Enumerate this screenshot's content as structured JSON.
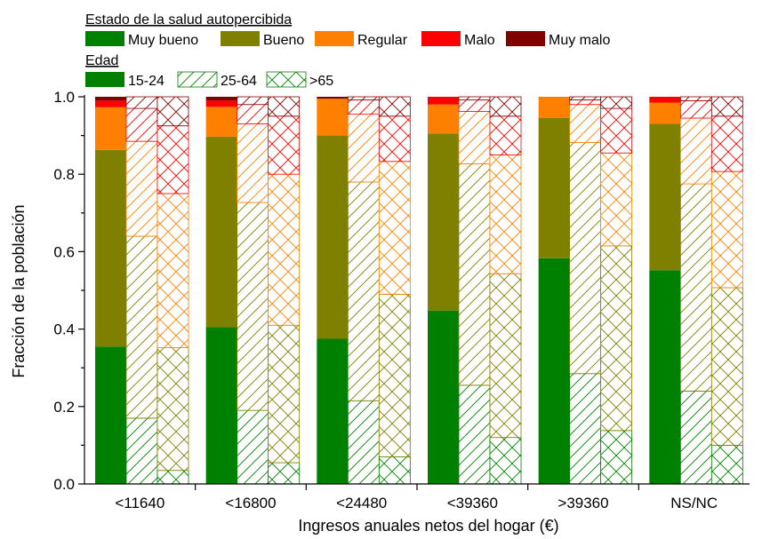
{
  "chart_data": {
    "type": "bar",
    "subtype": "stacked, grouped by income bracket; three bars per group (age groups) distinguished by hatch pattern",
    "categories": [
      "<11640",
      "<16800",
      "<24480",
      "<39360",
      ">39360",
      "NS/NC"
    ],
    "xlabel": "Ingresos anuales netos del hogar (€)",
    "ylabel": "Fracción de la población",
    "ylim": [
      0,
      1.0
    ],
    "yticks": [
      "0.0",
      "0.2",
      "0.4",
      "0.6",
      "0.8",
      "1.0"
    ],
    "grid": false,
    "legend_placement": "top-left",
    "legend": {
      "health_heading": "Estado de la salud autopercibida",
      "health_items": [
        {
          "label": "Muy bueno",
          "color": "#008000"
        },
        {
          "label": "Bueno",
          "color": "#808000"
        },
        {
          "label": "Regular",
          "color": "#ff8000"
        },
        {
          "label": "Malo",
          "color": "#ff0000"
        },
        {
          "label": "Muy malo",
          "color": "#800000"
        }
      ],
      "age_heading": "Edad",
      "age_items": [
        {
          "label": "15-24",
          "pattern": "solid"
        },
        {
          "label": "25-64",
          "pattern": "diagonal"
        },
        {
          "label": ">65",
          "pattern": "crosshatch"
        }
      ]
    },
    "data": {
      "15-24": {
        "Muy bueno": [
          0.355,
          0.405,
          0.375,
          0.448,
          0.583,
          0.552
        ],
        "Bueno": [
          0.508,
          0.492,
          0.525,
          0.457,
          0.362,
          0.378
        ],
        "Regular": [
          0.11,
          0.077,
          0.095,
          0.075,
          0.055,
          0.055
        ],
        "Malo": [
          0.017,
          0.016,
          0.0,
          0.02,
          0.0,
          0.015
        ],
        "Muy malo": [
          0.01,
          0.01,
          0.005,
          0.0,
          0.0,
          0.0
        ]
      },
      "25-64": {
        "Muy bueno": [
          0.17,
          0.19,
          0.215,
          0.255,
          0.285,
          0.24
        ],
        "Bueno": [
          0.47,
          0.537,
          0.565,
          0.572,
          0.597,
          0.535
        ],
        "Regular": [
          0.245,
          0.203,
          0.175,
          0.135,
          0.098,
          0.17
        ],
        "Malo": [
          0.085,
          0.05,
          0.037,
          0.03,
          0.012,
          0.045
        ],
        "Muy malo": [
          0.03,
          0.02,
          0.008,
          0.008,
          0.008,
          0.01
        ]
      },
      ">65": {
        "Muy bueno": [
          0.035,
          0.055,
          0.07,
          0.12,
          0.138,
          0.1
        ],
        "Bueno": [
          0.317,
          0.355,
          0.42,
          0.423,
          0.477,
          0.407
        ],
        "Regular": [
          0.398,
          0.39,
          0.343,
          0.307,
          0.24,
          0.3
        ],
        "Malo": [
          0.175,
          0.15,
          0.117,
          0.1,
          0.115,
          0.143
        ],
        "Muy malo": [
          0.075,
          0.05,
          0.05,
          0.05,
          0.03,
          0.05
        ]
      }
    }
  }
}
